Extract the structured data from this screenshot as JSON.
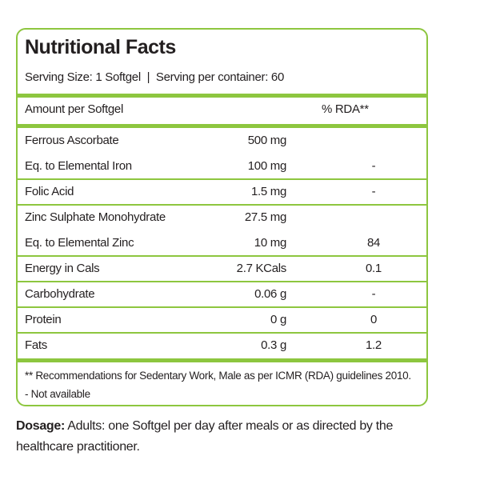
{
  "title": "Nutritional Facts",
  "serving": "Serving Size: 1 Softgel  |  Serving per container: 60",
  "header": {
    "amount": "Amount per Softgel",
    "rda": "% RDA**"
  },
  "groups": [
    [
      {
        "name": "Ferrous Ascorbate",
        "amount": "500 mg"
      },
      {
        "name": "Eq. to Elemental Iron",
        "amount": "100 mg",
        "rda": "-"
      }
    ],
    [
      {
        "name": "Folic Acid",
        "amount": "1.5 mg",
        "rda": "-"
      }
    ],
    [
      {
        "name": "Zinc Sulphate Monohydrate",
        "amount": "27.5 mg"
      },
      {
        "name": "Eq. to Elemental Zinc",
        "amount": "10 mg",
        "rda": "84"
      }
    ],
    [
      {
        "name": "Energy in Cals",
        "amount": "2.7 KCals",
        "rda": "0.1"
      }
    ],
    [
      {
        "name": "Carbohydrate",
        "amount": "0.06 g",
        "rda": "-"
      }
    ],
    [
      {
        "name": "Protein",
        "amount": "0 g",
        "rda": "0"
      }
    ],
    [
      {
        "name": "Fats",
        "amount": "0.3 g",
        "rda": "1.2"
      }
    ]
  ],
  "footnotes": [
    "** Recommendations for Sedentary Work, Male as per ICMR (RDA) guidelines 2010.",
    "- Not available"
  ],
  "dosage": {
    "label": "Dosage:",
    "text": " Adults: one Softgel per day after meals or as directed by the healthcare practitioner."
  }
}
